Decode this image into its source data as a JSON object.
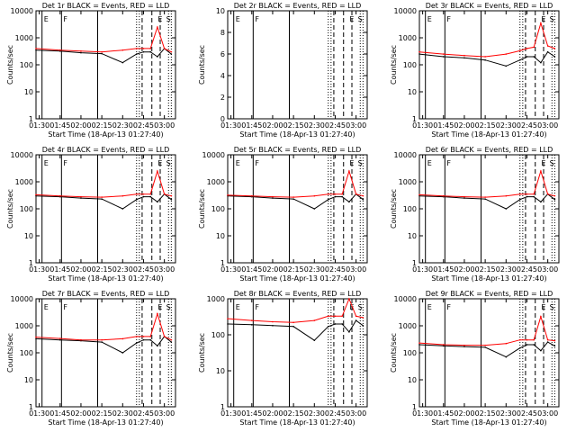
{
  "figure": {
    "ylabel": "Counts/sec",
    "xlabel": "Start Time (18-Apr-13 01:27:40)",
    "x_ticks": [
      "01:30",
      "01:45",
      "02:00",
      "02:15",
      "02:30",
      "02:45",
      "03:00"
    ],
    "y_ticks": [
      "1",
      "10",
      "100",
      "1000",
      "10000"
    ],
    "line_colors": {
      "events": "#000000",
      "lld": "#ff0000"
    }
  },
  "chart_data": [
    {
      "type": "line",
      "title": "Det 1r  BLACK = Events, RED = LLD",
      "empty": false,
      "ylim": [
        1,
        10000
      ],
      "y_scale": "log",
      "ytick_labels": [
        "1",
        "10",
        "100",
        "1000",
        "10000"
      ],
      "xlim": [
        "01:27:40",
        "03:08:00"
      ],
      "markers": [
        "E",
        "F",
        "E",
        "S"
      ],
      "series": [
        {
          "name": "Events",
          "x": [
            "01:27:40",
            "01:45",
            "02:00",
            "02:15",
            "02:30",
            "02:40",
            "02:45",
            "02:50",
            "02:55",
            "03:00",
            "03:05"
          ],
          "y": [
            350,
            320,
            280,
            260,
            120,
            250,
            300,
            300,
            200,
            400,
            250
          ]
        },
        {
          "name": "LLD",
          "x": [
            "01:27:40",
            "01:45",
            "02:00",
            "02:15",
            "02:30",
            "02:40",
            "02:45",
            "02:50",
            "02:55",
            "03:00",
            "03:05"
          ],
          "y": [
            400,
            350,
            320,
            300,
            350,
            400,
            400,
            400,
            2500,
            400,
            300
          ]
        }
      ]
    },
    {
      "type": "line",
      "title": "Det 2r  BLACK = Events, RED = LLD",
      "empty": true,
      "ylim": [
        0,
        10
      ],
      "y_scale": "linear",
      "ytick_labels": [
        "0",
        "2",
        "4",
        "6",
        "8",
        "10"
      ],
      "xlim": [
        "01:27:40",
        "03:08:00"
      ],
      "markers": [
        "E",
        "F",
        "E",
        "S"
      ],
      "series": []
    },
    {
      "type": "line",
      "title": "Det 3r  BLACK = Events, RED = LLD",
      "empty": false,
      "ylim": [
        1,
        10000
      ],
      "y_scale": "log",
      "ytick_labels": [
        "1",
        "10",
        "100",
        "1000",
        "10000"
      ],
      "xlim": [
        "01:27:40",
        "03:08:00"
      ],
      "markers": [
        "E",
        "F",
        "E",
        "S"
      ],
      "series": [
        {
          "name": "Events",
          "x": [
            "01:27:40",
            "01:45",
            "02:00",
            "02:15",
            "02:30",
            "02:40",
            "02:45",
            "02:50",
            "02:55",
            "03:00",
            "03:05"
          ],
          "y": [
            250,
            200,
            180,
            150,
            90,
            150,
            200,
            200,
            120,
            300,
            200
          ]
        },
        {
          "name": "LLD",
          "x": [
            "01:27:40",
            "01:45",
            "02:00",
            "02:15",
            "02:30",
            "02:40",
            "02:45",
            "02:50",
            "02:55",
            "03:00",
            "03:05"
          ],
          "y": [
            300,
            250,
            220,
            200,
            250,
            330,
            400,
            450,
            3500,
            500,
            400
          ]
        }
      ]
    },
    {
      "type": "line",
      "title": "Det 4r  BLACK = Events, RED = LLD",
      "empty": false,
      "ylim": [
        1,
        10000
      ],
      "y_scale": "log",
      "ytick_labels": [
        "1",
        "10",
        "100",
        "1000",
        "10000"
      ],
      "xlim": [
        "01:27:40",
        "03:08:00"
      ],
      "markers": [
        "E",
        "F",
        "E",
        "S"
      ],
      "series": [
        {
          "name": "Events",
          "x": [
            "01:27:40",
            "01:45",
            "02:00",
            "02:15",
            "02:30",
            "02:40",
            "02:45",
            "02:50",
            "02:55",
            "03:00",
            "03:05"
          ],
          "y": [
            300,
            280,
            250,
            230,
            100,
            220,
            280,
            280,
            180,
            350,
            220
          ]
        },
        {
          "name": "LLD",
          "x": [
            "01:27:40",
            "01:45",
            "02:00",
            "02:15",
            "02:30",
            "02:40",
            "02:45",
            "02:50",
            "02:55",
            "03:00",
            "03:05"
          ],
          "y": [
            330,
            300,
            280,
            270,
            300,
            350,
            350,
            350,
            2500,
            350,
            300
          ]
        }
      ]
    },
    {
      "type": "line",
      "title": "Det 5r  BLACK = Events, RED = LLD",
      "empty": false,
      "ylim": [
        1,
        10000
      ],
      "y_scale": "log",
      "ytick_labels": [
        "1",
        "10",
        "100",
        "1000",
        "10000"
      ],
      "xlim": [
        "01:27:40",
        "03:08:00"
      ],
      "markers": [
        "E",
        "F",
        "E",
        "S"
      ],
      "series": [
        {
          "name": "Events",
          "x": [
            "01:27:40",
            "01:45",
            "02:00",
            "02:15",
            "02:30",
            "02:40",
            "02:45",
            "02:50",
            "02:55",
            "03:00",
            "03:05"
          ],
          "y": [
            300,
            280,
            250,
            230,
            100,
            220,
            280,
            280,
            180,
            350,
            220
          ]
        },
        {
          "name": "LLD",
          "x": [
            "01:27:40",
            "01:45",
            "02:00",
            "02:15",
            "02:30",
            "02:40",
            "02:45",
            "02:50",
            "02:55",
            "03:00",
            "03:05"
          ],
          "y": [
            320,
            300,
            280,
            270,
            300,
            350,
            350,
            350,
            2500,
            350,
            300
          ]
        }
      ]
    },
    {
      "type": "line",
      "title": "Det 6r  BLACK = Events, RED = LLD",
      "empty": false,
      "ylim": [
        1,
        10000
      ],
      "y_scale": "log",
      "ytick_labels": [
        "1",
        "10",
        "100",
        "1000",
        "10000"
      ],
      "xlim": [
        "01:27:40",
        "03:08:00"
      ],
      "markers": [
        "E",
        "F",
        "E",
        "S"
      ],
      "series": [
        {
          "name": "Events",
          "x": [
            "01:27:40",
            "01:45",
            "02:00",
            "02:15",
            "02:30",
            "02:40",
            "02:45",
            "02:50",
            "02:55",
            "03:00",
            "03:05"
          ],
          "y": [
            300,
            280,
            250,
            230,
            100,
            220,
            280,
            280,
            180,
            350,
            220
          ]
        },
        {
          "name": "LLD",
          "x": [
            "01:27:40",
            "01:45",
            "02:00",
            "02:15",
            "02:30",
            "02:40",
            "02:45",
            "02:50",
            "02:55",
            "03:00",
            "03:05"
          ],
          "y": [
            330,
            300,
            280,
            270,
            300,
            350,
            350,
            350,
            2500,
            350,
            300
          ]
        }
      ]
    },
    {
      "type": "line",
      "title": "Det 7r  BLACK = Events, RED = LLD",
      "empty": false,
      "ylim": [
        1,
        10000
      ],
      "y_scale": "log",
      "ytick_labels": [
        "1",
        "10",
        "100",
        "1000",
        "10000"
      ],
      "xlim": [
        "01:27:40",
        "03:08:00"
      ],
      "markers": [
        "E",
        "F",
        "E",
        "S"
      ],
      "series": [
        {
          "name": "Events",
          "x": [
            "01:27:40",
            "01:45",
            "02:00",
            "02:15",
            "02:30",
            "02:40",
            "02:45",
            "02:50",
            "02:55",
            "03:00",
            "03:05"
          ],
          "y": [
            330,
            300,
            280,
            250,
            100,
            230,
            300,
            300,
            180,
            400,
            250
          ]
        },
        {
          "name": "LLD",
          "x": [
            "01:27:40",
            "01:45",
            "02:00",
            "02:15",
            "02:30",
            "02:40",
            "02:45",
            "02:50",
            "02:55",
            "03:00",
            "03:05"
          ],
          "y": [
            380,
            340,
            300,
            300,
            330,
            400,
            400,
            400,
            2800,
            400,
            300
          ]
        }
      ]
    },
    {
      "type": "line",
      "title": "Det 8r  BLACK = Events, RED = LLD",
      "empty": false,
      "ylim": [
        1,
        1000
      ],
      "y_scale": "log",
      "ytick_labels": [
        "1",
        "10",
        "100",
        "1000"
      ],
      "xlim": [
        "01:27:40",
        "03:08:00"
      ],
      "markers": [
        "E",
        "F",
        "E",
        "S"
      ],
      "series": [
        {
          "name": "Events",
          "x": [
            "01:27:40",
            "01:45",
            "02:00",
            "02:15",
            "02:30",
            "02:40",
            "02:45",
            "02:50",
            "02:55",
            "03:00",
            "03:05"
          ],
          "y": [
            200,
            190,
            180,
            170,
            70,
            170,
            200,
            200,
            120,
            250,
            180
          ]
        },
        {
          "name": "LLD",
          "x": [
            "01:27:40",
            "01:45",
            "02:00",
            "02:15",
            "02:30",
            "02:40",
            "02:45",
            "02:50",
            "02:55",
            "03:00",
            "03:05"
          ],
          "y": [
            280,
            250,
            230,
            220,
            250,
            330,
            330,
            330,
            1000,
            330,
            300
          ]
        }
      ]
    },
    {
      "type": "line",
      "title": "Det 9r  BLACK = Events, RED = LLD",
      "empty": false,
      "ylim": [
        1,
        10000
      ],
      "y_scale": "log",
      "ytick_labels": [
        "1",
        "10",
        "100",
        "1000",
        "10000"
      ],
      "xlim": [
        "01:27:40",
        "03:08:00"
      ],
      "markers": [
        "E",
        "F",
        "E",
        "S"
      ],
      "series": [
        {
          "name": "Events",
          "x": [
            "01:27:40",
            "01:45",
            "02:00",
            "02:15",
            "02:30",
            "02:40",
            "02:45",
            "02:50",
            "02:55",
            "03:00",
            "03:05"
          ],
          "y": [
            200,
            180,
            170,
            160,
            70,
            150,
            200,
            200,
            120,
            250,
            180
          ]
        },
        {
          "name": "LLD",
          "x": [
            "01:27:40",
            "01:45",
            "02:00",
            "02:15",
            "02:30",
            "02:40",
            "02:45",
            "02:50",
            "02:55",
            "03:00",
            "03:05"
          ],
          "y": [
            230,
            200,
            190,
            190,
            220,
            300,
            300,
            300,
            2200,
            300,
            280
          ]
        }
      ]
    }
  ]
}
